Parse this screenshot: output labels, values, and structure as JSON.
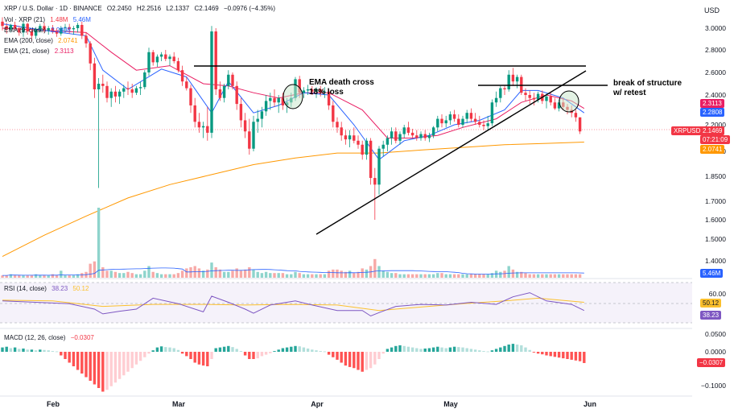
{
  "header": {
    "symbol": "XRP / U.S. Dollar · 1D · BINANCE",
    "ohlc": {
      "open": "O2.2450",
      "high": "H2.2516",
      "low": "L2.1337",
      "close": "C2.1469",
      "change": "−0.0976 (−4.35%)"
    },
    "currency": "USD"
  },
  "legend": {
    "volume": {
      "label": "Vol · XRP (21)",
      "v1": "1.48M",
      "v2": "5.46M"
    },
    "ema9": {
      "label": "EMA (9, close)",
      "value": "2.2808"
    },
    "ema200": {
      "label": "EMA (200, close)",
      "value": "2.0741"
    },
    "ema21": {
      "label": "EMA (21, close)",
      "value": "2.3113"
    }
  },
  "price_axis": {
    "ticks": [
      "3.0000",
      "2.8000",
      "2.6000",
      "2.4000",
      "2.2000",
      "2.0000",
      "1.8500",
      "1.7000",
      "1.6000",
      "1.5000",
      "1.4000"
    ],
    "tags": {
      "ema21": "2.3113",
      "ema9": "2.2808",
      "symbol": "XRPUSD",
      "price": "2.1469",
      "countdown": "07:21:09",
      "ema200": "2.0741",
      "volume": "5.46M"
    }
  },
  "annotations": {
    "ema_cross_line1": "EMA death cross",
    "ema_cross_line2": "18% loss",
    "bos_line1": "break of structure",
    "bos_line2": "w/ retest"
  },
  "rsi": {
    "label": "RSI (14, close)",
    "v1": "38.23",
    "v2": "50.12",
    "ticks": [
      "60.00"
    ],
    "tags": {
      "ma": "50.12",
      "rsi": "38.23"
    }
  },
  "macd": {
    "label": "MACD (12, 26, close)",
    "value": "−0.0307",
    "ticks": [
      "0.0500",
      "0.0000",
      "−0.0500",
      "−0.1000"
    ],
    "tag": "−0.0307"
  },
  "x_axis": {
    "labels": [
      "Feb",
      "Mar",
      "Apr",
      "May",
      "Jun"
    ]
  },
  "colors": {
    "up": "#089981",
    "down": "#f23645",
    "ema9": "#2962ff",
    "ema21": "#e91e63",
    "ema200": "#ff9800",
    "rsi": "#7e57c2",
    "rsi_ma": "#fbc02d",
    "vol_up": "#8ed4cc",
    "vol_down": "#f7a9a7"
  },
  "chart_data": {
    "type": "candlestick",
    "start_date": "2025-01-07",
    "candles": [
      [
        3.06,
        3.1,
        2.98,
        3.02
      ],
      [
        3.02,
        3.05,
        2.95,
        2.99
      ],
      [
        2.99,
        3.04,
        2.96,
        3.03
      ],
      [
        3.03,
        3.06,
        2.98,
        3.0
      ],
      [
        3.0,
        3.02,
        2.93,
        2.96
      ],
      [
        2.96,
        3.06,
        2.92,
        3.04
      ],
      [
        3.04,
        3.05,
        2.94,
        2.97
      ],
      [
        2.97,
        2.99,
        2.88,
        2.93
      ],
      [
        2.93,
        3.01,
        2.9,
        2.99
      ],
      [
        2.99,
        3.04,
        2.96,
        3.02
      ],
      [
        3.02,
        3.05,
        2.96,
        2.98
      ],
      [
        2.98,
        3.02,
        2.94,
        3.0
      ],
      [
        3.0,
        3.03,
        2.95,
        2.97
      ],
      [
        2.97,
        3.0,
        2.92,
        2.95
      ],
      [
        2.95,
        3.02,
        2.93,
        3.0
      ],
      [
        3.0,
        3.04,
        2.96,
        3.01
      ],
      [
        3.01,
        3.04,
        2.95,
        2.99
      ],
      [
        2.99,
        3.02,
        2.94,
        3.0
      ],
      [
        3.0,
        3.05,
        2.96,
        3.03
      ],
      [
        3.03,
        3.06,
        2.9,
        2.93
      ],
      [
        2.93,
        2.96,
        2.82,
        2.86
      ],
      [
        2.86,
        2.88,
        2.62,
        2.68
      ],
      [
        2.68,
        2.73,
        2.38,
        2.45
      ],
      [
        2.45,
        2.55,
        1.78,
        2.5
      ],
      [
        2.5,
        2.58,
        2.42,
        2.48
      ],
      [
        2.48,
        2.52,
        2.35,
        2.38
      ],
      [
        2.38,
        2.46,
        2.32,
        2.43
      ],
      [
        2.43,
        2.48,
        2.35,
        2.39
      ],
      [
        2.39,
        2.45,
        2.34,
        2.43
      ],
      [
        2.43,
        2.49,
        2.38,
        2.46
      ],
      [
        2.46,
        2.52,
        2.4,
        2.45
      ],
      [
        2.45,
        2.5,
        2.38,
        2.42
      ],
      [
        2.42,
        2.48,
        2.4,
        2.46
      ],
      [
        2.46,
        2.52,
        2.4,
        2.47
      ],
      [
        2.47,
        2.62,
        2.45,
        2.6
      ],
      [
        2.6,
        2.82,
        2.57,
        2.78
      ],
      [
        2.78,
        2.8,
        2.66,
        2.69
      ],
      [
        2.69,
        2.76,
        2.65,
        2.74
      ],
      [
        2.74,
        2.78,
        2.7,
        2.76
      ],
      [
        2.76,
        2.8,
        2.7,
        2.72
      ],
      [
        2.72,
        2.76,
        2.66,
        2.74
      ],
      [
        2.74,
        2.78,
        2.68,
        2.7
      ],
      [
        2.7,
        2.73,
        2.6,
        2.62
      ],
      [
        2.62,
        2.66,
        2.48,
        2.52
      ],
      [
        2.52,
        2.56,
        2.44,
        2.46
      ],
      [
        2.46,
        2.49,
        2.28,
        2.33
      ],
      [
        2.33,
        2.38,
        2.18,
        2.22
      ],
      [
        2.22,
        2.28,
        2.14,
        2.18
      ],
      [
        2.18,
        2.22,
        2.1,
        2.19
      ],
      [
        2.19,
        2.32,
        2.08,
        2.14
      ],
      [
        2.14,
        3.02,
        2.1,
        2.97
      ],
      [
        2.97,
        3.0,
        2.4,
        2.45
      ],
      [
        2.45,
        2.52,
        2.36,
        2.38
      ],
      [
        2.38,
        2.5,
        2.35,
        2.48
      ],
      [
        2.48,
        2.62,
        2.45,
        2.58
      ],
      [
        2.58,
        2.6,
        2.45,
        2.48
      ],
      [
        2.48,
        2.52,
        2.3,
        2.34
      ],
      [
        2.34,
        2.38,
        2.18,
        2.23
      ],
      [
        2.23,
        2.28,
        2.1,
        2.15
      ],
      [
        2.15,
        2.24,
        1.98,
        2.02
      ],
      [
        2.02,
        2.26,
        2.0,
        2.22
      ],
      [
        2.22,
        2.3,
        2.14,
        2.24
      ],
      [
        2.24,
        2.32,
        2.18,
        2.29
      ],
      [
        2.29,
        2.4,
        2.26,
        2.36
      ],
      [
        2.36,
        2.42,
        2.3,
        2.38
      ],
      [
        2.38,
        2.45,
        2.32,
        2.35
      ],
      [
        2.35,
        2.4,
        2.28,
        2.38
      ],
      [
        2.38,
        2.42,
        2.3,
        2.33
      ],
      [
        2.33,
        2.38,
        2.28,
        2.35
      ],
      [
        2.35,
        2.42,
        2.32,
        2.38
      ],
      [
        2.38,
        2.56,
        2.36,
        2.54
      ],
      [
        2.54,
        2.57,
        2.38,
        2.42
      ],
      [
        2.42,
        2.47,
        2.38,
        2.44
      ],
      [
        2.44,
        2.49,
        2.4,
        2.45
      ],
      [
        2.45,
        2.48,
        2.4,
        2.43
      ],
      [
        2.43,
        2.47,
        2.38,
        2.45
      ],
      [
        2.45,
        2.48,
        2.39,
        2.42
      ],
      [
        2.42,
        2.47,
        2.38,
        2.43
      ],
      [
        2.43,
        2.45,
        2.3,
        2.33
      ],
      [
        2.33,
        2.36,
        2.18,
        2.22
      ],
      [
        2.22,
        2.25,
        2.14,
        2.18
      ],
      [
        2.18,
        2.22,
        2.08,
        2.12
      ],
      [
        2.12,
        2.16,
        2.05,
        2.09
      ],
      [
        2.09,
        2.16,
        2.03,
        2.12
      ],
      [
        2.12,
        2.18,
        2.06,
        2.08
      ],
      [
        2.08,
        2.12,
        2.02,
        2.05
      ],
      [
        2.05,
        2.08,
        1.95,
        1.98
      ],
      [
        1.98,
        2.1,
        1.95,
        2.08
      ],
      [
        2.08,
        2.1,
        1.8,
        1.84
      ],
      [
        1.84,
        1.9,
        1.6,
        1.8
      ],
      [
        1.8,
        2.04,
        1.74,
        2.02
      ],
      [
        2.02,
        2.08,
        1.97,
        2.05
      ],
      [
        2.05,
        2.12,
        2.0,
        2.1
      ],
      [
        2.1,
        2.18,
        2.05,
        2.15
      ],
      [
        2.15,
        2.18,
        2.06,
        2.08
      ],
      [
        2.08,
        2.15,
        2.05,
        2.13
      ],
      [
        2.13,
        2.2,
        2.1,
        2.18
      ],
      [
        2.18,
        2.22,
        2.12,
        2.14
      ],
      [
        2.14,
        2.17,
        2.1,
        2.12
      ],
      [
        2.12,
        2.16,
        2.08,
        2.1
      ],
      [
        2.1,
        2.15,
        2.08,
        2.13
      ],
      [
        2.13,
        2.16,
        2.08,
        2.1
      ],
      [
        2.1,
        2.14,
        2.07,
        2.12
      ],
      [
        2.12,
        2.19,
        2.1,
        2.18
      ],
      [
        2.18,
        2.26,
        2.15,
        2.24
      ],
      [
        2.24,
        2.27,
        2.18,
        2.21
      ],
      [
        2.21,
        2.26,
        2.18,
        2.23
      ],
      [
        2.23,
        2.29,
        2.2,
        2.27
      ],
      [
        2.27,
        2.3,
        2.22,
        2.24
      ],
      [
        2.24,
        2.27,
        2.18,
        2.2
      ],
      [
        2.2,
        2.26,
        2.18,
        2.24
      ],
      [
        2.24,
        2.3,
        2.21,
        2.28
      ],
      [
        2.28,
        2.31,
        2.22,
        2.24
      ],
      [
        2.24,
        2.28,
        2.2,
        2.22
      ],
      [
        2.22,
        2.26,
        2.18,
        2.2
      ],
      [
        2.2,
        2.23,
        2.16,
        2.19
      ],
      [
        2.19,
        2.26,
        2.16,
        2.21
      ],
      [
        2.21,
        2.37,
        2.19,
        2.35
      ],
      [
        2.35,
        2.43,
        2.32,
        2.38
      ],
      [
        2.38,
        2.48,
        2.35,
        2.46
      ],
      [
        2.46,
        2.48,
        2.4,
        2.45
      ],
      [
        2.45,
        2.62,
        2.43,
        2.58
      ],
      [
        2.58,
        2.64,
        2.48,
        2.52
      ],
      [
        2.52,
        2.58,
        2.46,
        2.56
      ],
      [
        2.56,
        2.58,
        2.4,
        2.42
      ],
      [
        2.42,
        2.46,
        2.36,
        2.4
      ],
      [
        2.4,
        2.44,
        2.34,
        2.38
      ],
      [
        2.38,
        2.42,
        2.33,
        2.37
      ],
      [
        2.37,
        2.43,
        2.35,
        2.41
      ],
      [
        2.41,
        2.44,
        2.34,
        2.36
      ],
      [
        2.36,
        2.41,
        2.31,
        2.39
      ],
      [
        2.39,
        2.42,
        2.33,
        2.35
      ],
      [
        2.35,
        2.38,
        2.3,
        2.31
      ],
      [
        2.31,
        2.37,
        2.29,
        2.35
      ],
      [
        2.35,
        2.38,
        2.3,
        2.32
      ],
      [
        2.32,
        2.34,
        2.27,
        2.3
      ],
      [
        2.3,
        2.33,
        2.25,
        2.28
      ],
      [
        2.28,
        2.3,
        2.22,
        2.25
      ],
      [
        2.25,
        2.25,
        2.13,
        2.15
      ]
    ],
    "ema9": [
      [
        0,
        3.04
      ],
      [
        10,
        2.98
      ],
      [
        20,
        2.93
      ],
      [
        24,
        2.62
      ],
      [
        30,
        2.45
      ],
      [
        38,
        2.63
      ],
      [
        44,
        2.56
      ],
      [
        50,
        2.28
      ],
      [
        54,
        2.52
      ],
      [
        60,
        2.28
      ],
      [
        66,
        2.33
      ],
      [
        72,
        2.42
      ],
      [
        78,
        2.4
      ],
      [
        84,
        2.2
      ],
      [
        90,
        1.95
      ],
      [
        96,
        2.08
      ],
      [
        102,
        2.12
      ],
      [
        108,
        2.2
      ],
      [
        114,
        2.23
      ],
      [
        120,
        2.3
      ],
      [
        124,
        2.44
      ],
      [
        128,
        2.44
      ],
      [
        134,
        2.38
      ],
      [
        139,
        2.28
      ]
    ],
    "ema21": [
      [
        0,
        3.0
      ],
      [
        10,
        2.98
      ],
      [
        20,
        2.96
      ],
      [
        26,
        2.78
      ],
      [
        32,
        2.62
      ],
      [
        40,
        2.66
      ],
      [
        48,
        2.5
      ],
      [
        54,
        2.48
      ],
      [
        60,
        2.42
      ],
      [
        66,
        2.38
      ],
      [
        72,
        2.42
      ],
      [
        78,
        2.42
      ],
      [
        86,
        2.3
      ],
      [
        92,
        2.1
      ],
      [
        98,
        2.1
      ],
      [
        104,
        2.12
      ],
      [
        110,
        2.18
      ],
      [
        118,
        2.24
      ],
      [
        124,
        2.35
      ],
      [
        130,
        2.4
      ],
      [
        136,
        2.36
      ],
      [
        139,
        2.31
      ]
    ],
    "ema200": [
      [
        0,
        1.42
      ],
      [
        10,
        1.52
      ],
      [
        20,
        1.62
      ],
      [
        30,
        1.72
      ],
      [
        40,
        1.8
      ],
      [
        50,
        1.86
      ],
      [
        60,
        1.92
      ],
      [
        70,
        1.96
      ],
      [
        80,
        1.99
      ],
      [
        90,
        1.99
      ],
      [
        100,
        2.01
      ],
      [
        110,
        2.03
      ],
      [
        120,
        2.05
      ],
      [
        130,
        2.06
      ],
      [
        139,
        2.07
      ]
    ],
    "volume": [
      2,
      2,
      3,
      2,
      2,
      2,
      2,
      2,
      3,
      2,
      2,
      2,
      3,
      2,
      6,
      2,
      2,
      2,
      3,
      4,
      5,
      12,
      14,
      60,
      9,
      6,
      6,
      5,
      4,
      4,
      5,
      4,
      3,
      3,
      6,
      10,
      5,
      4,
      3,
      3,
      3,
      3,
      4,
      6,
      8,
      9,
      10,
      8,
      6,
      7,
      13,
      9,
      7,
      5,
      5,
      6,
      8,
      6,
      7,
      9,
      7,
      5,
      4,
      5,
      4,
      4,
      4,
      4,
      3,
      3,
      5,
      4,
      3,
      3,
      3,
      3,
      3,
      3,
      6,
      7,
      7,
      6,
      5,
      6,
      4,
      5,
      8,
      7,
      10,
      16,
      10,
      6,
      5,
      4,
      4,
      3,
      3,
      3,
      3,
      3,
      3,
      3,
      3,
      3,
      4,
      4,
      3,
      3,
      3,
      3,
      3,
      3,
      3,
      3,
      3,
      3,
      3,
      4,
      6,
      5,
      6,
      10,
      7,
      5,
      5,
      4,
      3,
      3,
      3,
      3,
      3,
      3,
      3,
      3,
      3,
      3,
      3,
      3,
      3,
      3
    ],
    "rsi": [
      [
        0,
        52
      ],
      [
        8,
        50
      ],
      [
        16,
        48
      ],
      [
        22,
        40
      ],
      [
        24,
        33
      ],
      [
        28,
        37
      ],
      [
        32,
        40
      ],
      [
        36,
        56
      ],
      [
        42,
        48
      ],
      [
        48,
        36
      ],
      [
        50,
        59
      ],
      [
        54,
        50
      ],
      [
        58,
        40
      ],
      [
        60,
        34
      ],
      [
        64,
        46
      ],
      [
        70,
        52
      ],
      [
        74,
        46
      ],
      [
        80,
        38
      ],
      [
        86,
        38
      ],
      [
        88,
        30
      ],
      [
        90,
        35
      ],
      [
        94,
        44
      ],
      [
        100,
        47
      ],
      [
        106,
        46
      ],
      [
        112,
        50
      ],
      [
        118,
        47
      ],
      [
        122,
        58
      ],
      [
        126,
        64
      ],
      [
        130,
        52
      ],
      [
        136,
        47
      ],
      [
        139,
        38
      ]
    ],
    "rsi_ma": [
      [
        0,
        53
      ],
      [
        12,
        52
      ],
      [
        24,
        44
      ],
      [
        36,
        47
      ],
      [
        48,
        47
      ],
      [
        58,
        46
      ],
      [
        68,
        47
      ],
      [
        80,
        46
      ],
      [
        90,
        38
      ],
      [
        100,
        43
      ],
      [
        110,
        48
      ],
      [
        120,
        52
      ],
      [
        128,
        56
      ],
      [
        139,
        50
      ]
    ],
    "macd_hist": [
      0.012,
      0.014,
      0.01,
      0.012,
      0.008,
      0.009,
      0.006,
      0.006,
      0.004,
      0.006,
      0.005,
      0.004,
      0.002,
      0.001,
      -0.01,
      -0.02,
      -0.03,
      -0.04,
      -0.05,
      -0.06,
      -0.07,
      -0.08,
      -0.09,
      -0.1,
      -0.11,
      -0.105,
      -0.095,
      -0.085,
      -0.075,
      -0.065,
      -0.055,
      -0.045,
      -0.035,
      -0.025,
      -0.015,
      -0.005,
      0.004,
      0.012,
      0.015,
      0.013,
      0.012,
      0.01,
      0.005,
      -0.005,
      -0.012,
      -0.02,
      -0.03,
      -0.035,
      -0.038,
      -0.04,
      -0.02,
      0.01,
      0.012,
      0.014,
      0.016,
      0.013,
      0.008,
      0.002,
      -0.01,
      -0.02,
      -0.02,
      -0.018,
      -0.012,
      -0.008,
      -0.004,
      0.002,
      0.006,
      0.01,
      0.012,
      0.014,
      0.016,
      0.015,
      0.012,
      0.009,
      0.006,
      0.004,
      0.002,
      0.001,
      -0.008,
      -0.015,
      -0.022,
      -0.03,
      -0.038,
      -0.042,
      -0.045,
      -0.05,
      -0.055,
      -0.05,
      -0.045,
      -0.035,
      -0.02,
      -0.005,
      0.008,
      0.012,
      0.016,
      0.018,
      0.016,
      0.014,
      0.012,
      0.01,
      0.008,
      0.009,
      0.01,
      0.012,
      0.014,
      0.012,
      0.01,
      0.012,
      0.014,
      0.013,
      0.012,
      0.01,
      0.008,
      0.006,
      0.004,
      0.002,
      0.001,
      0.004,
      0.008,
      0.012,
      0.016,
      0.02,
      0.022,
      0.02,
      0.018,
      0.012,
      0.005,
      -0.002,
      -0.005,
      -0.007,
      -0.01,
      -0.012,
      -0.014,
      -0.016,
      -0.018,
      -0.02,
      -0.022,
      -0.024,
      -0.026,
      -0.031
    ]
  }
}
